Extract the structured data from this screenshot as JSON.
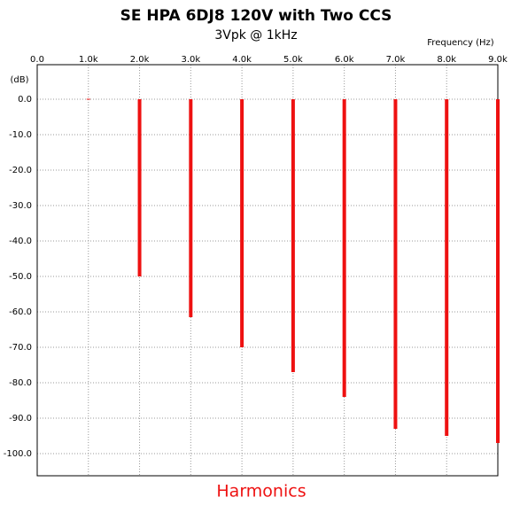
{
  "chart_data": {
    "type": "bar",
    "title": "SE HPA 6DJ8 120V with Two CCS",
    "subtitle": "3Vpk @ 1kHz",
    "x_label": "Frequency  (Hz)",
    "y_label": "(dB)",
    "annotation": "Harmonics",
    "x": [
      1000,
      2000,
      3000,
      4000,
      5000,
      6000,
      7000,
      8000,
      9000
    ],
    "values": [
      0,
      -50,
      -61.5,
      -70,
      -77,
      -84,
      -93,
      -95,
      -97
    ],
    "color": "#ee1111",
    "xlim": [
      0,
      9000
    ],
    "ylim": [
      -106.25,
      9.75
    ],
    "xticks": [
      {
        "value": 0,
        "label": "0.0"
      },
      {
        "value": 1000,
        "label": "1.0k"
      },
      {
        "value": 2000,
        "label": "2.0k"
      },
      {
        "value": 3000,
        "label": "3.0k"
      },
      {
        "value": 4000,
        "label": "4.0k"
      },
      {
        "value": 5000,
        "label": "5.0k"
      },
      {
        "value": 6000,
        "label": "6.0k"
      },
      {
        "value": 7000,
        "label": "7.0k"
      },
      {
        "value": 8000,
        "label": "8.0k"
      },
      {
        "value": 9000,
        "label": "9.0k"
      }
    ],
    "yticks": [
      {
        "value": 0,
        "label": "0.0"
      },
      {
        "value": -10,
        "label": "-10.0"
      },
      {
        "value": -20,
        "label": "-20.0"
      },
      {
        "value": -30,
        "label": "-30.0"
      },
      {
        "value": -40,
        "label": "-40.0"
      },
      {
        "value": -50,
        "label": "-50.0"
      },
      {
        "value": -60,
        "label": "-60.0"
      },
      {
        "value": -70,
        "label": "-70.0"
      },
      {
        "value": -80,
        "label": "-80.0"
      },
      {
        "value": -90,
        "label": "-90.0"
      },
      {
        "value": -100,
        "label": "-100.0"
      }
    ],
    "grid": true
  }
}
